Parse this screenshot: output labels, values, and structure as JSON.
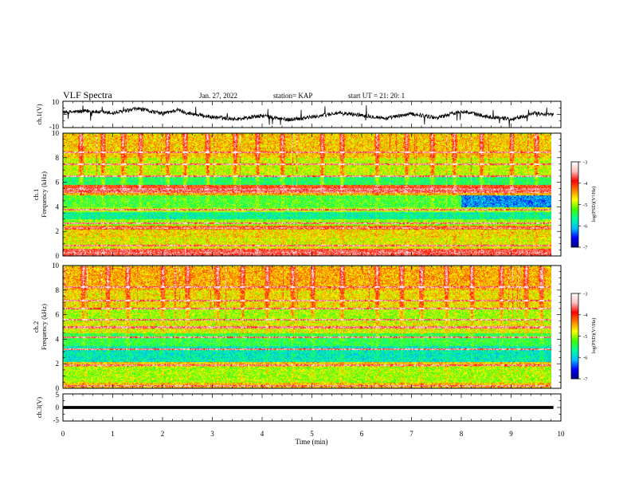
{
  "header": {
    "title": "VLF Spectra",
    "date": "Jan. 27, 2022",
    "station": "station= KAP",
    "start": "start  UT =   21: 20: 1"
  },
  "chart_data": [
    {
      "type": "line",
      "name": "ch1-waveform",
      "ylabel": "ch.1(V)",
      "xlim": [
        0,
        10
      ],
      "ylim": [
        -10,
        10
      ],
      "ytick_labels": [
        "10",
        "-10"
      ],
      "data_end_min": 9.85,
      "trace": {
        "x_min": [
          0,
          0.5,
          1.0,
          1.3,
          1.5,
          2.0,
          2.3,
          2.5,
          3.0,
          3.5,
          4.0,
          4.5,
          5.0,
          5.5,
          6.0,
          6.5,
          7.0,
          7.5,
          8.0,
          8.5,
          9.0,
          9.3,
          9.5,
          9.85
        ],
        "v": [
          1.5,
          2.5,
          1.0,
          2.8,
          4.5,
          0.5,
          3.5,
          1.0,
          -2.0,
          -3.5,
          -1.0,
          -4.0,
          -2.0,
          1.0,
          -0.5,
          -3.0,
          0.5,
          -2.5,
          2.5,
          -1.5,
          -3.5,
          -1.0,
          1.0,
          -0.5
        ]
      }
    },
    {
      "type": "heatmap",
      "name": "ch1-spectrogram",
      "xlabel": "",
      "ylabel_line1": "ch.1",
      "ylabel_line2": "Frequency  (kHz)",
      "xlim": [
        0,
        10
      ],
      "ylim": [
        0,
        10
      ],
      "ytick_labels": [
        "0",
        "2",
        "4",
        "6",
        "8",
        "10"
      ],
      "data_end_min": 9.85,
      "colorbar": {
        "label": "log(PSD)(V²/Hz)",
        "range": [
          -7,
          -3
        ],
        "tick_labels": [
          "-3",
          "-4",
          "-5",
          "-6",
          "-7"
        ],
        "colormap": [
          "#000080",
          "#0000ff",
          "#00c0ff",
          "#00ffa0",
          "#40ff00",
          "#ffff00",
          "#ff8000",
          "#ff0000",
          "#ffc0c0",
          "#ffffff"
        ]
      },
      "bands": [
        {
          "f": [
            0.0,
            0.6
          ],
          "level": -3.8
        },
        {
          "f": [
            0.6,
            1.5
          ],
          "level": -4.8
        },
        {
          "f": [
            1.5,
            2.2
          ],
          "level": -4.7
        },
        {
          "f": [
            2.2,
            2.5
          ],
          "level": -4.3
        },
        {
          "f": [
            2.5,
            3.0
          ],
          "level": -5.1
        },
        {
          "f": [
            3.0,
            3.6
          ],
          "level": -5.7
        },
        {
          "f": [
            3.6,
            4.0
          ],
          "level": -5.0
        },
        {
          "f": [
            4.0,
            5.0
          ],
          "level": -5.3
        },
        {
          "f": [
            5.0,
            5.3
          ],
          "level": -4.5
        },
        {
          "f": [
            5.3,
            5.8
          ],
          "level": -4.0
        },
        {
          "f": [
            5.8,
            6.5
          ],
          "level": -5.5
        },
        {
          "f": [
            6.5,
            8.0
          ],
          "level": -4.9
        },
        {
          "f": [
            8.0,
            10.0
          ],
          "level": -4.6
        }
      ],
      "late_segment": {
        "from_min": 8.0,
        "f": [
          4.0,
          5.0
        ],
        "level": -6.2
      },
      "lines_khz": [
        0.3,
        0.9,
        2.3,
        2.7,
        3.8,
        5.2,
        5.45,
        6.5,
        7.5,
        8.5
      ],
      "bursts_min": [
        0.35,
        0.8,
        1.2,
        1.55,
        2.1,
        2.45,
        2.9,
        3.45,
        3.9,
        4.4,
        5.2,
        5.6,
        6.3,
        6.9,
        7.4,
        7.85,
        8.4,
        9.0,
        9.5
      ]
    },
    {
      "type": "heatmap",
      "name": "ch2-spectrogram",
      "xlabel": "",
      "ylabel_line1": "ch.2",
      "ylabel_line2": "Frequency  (kHz)",
      "xlim": [
        0,
        10
      ],
      "ylim": [
        0,
        10
      ],
      "ytick_labels": [
        "0",
        "2",
        "4",
        "6",
        "8",
        "10"
      ],
      "data_end_min": 9.85,
      "colorbar": {
        "label": "log(PSD)(V²/Hz)",
        "range": [
          -7,
          -3
        ],
        "tick_labels": [
          "-3",
          "-4",
          "-5",
          "-6",
          "-7"
        ],
        "colormap": [
          "#000080",
          "#0000ff",
          "#00c0ff",
          "#00ffa0",
          "#40ff00",
          "#ffff00",
          "#ff8000",
          "#ff0000",
          "#ffc0c0",
          "#ffffff"
        ]
      },
      "bands": [
        {
          "f": [
            0.0,
            0.5
          ],
          "level": -4.6
        },
        {
          "f": [
            0.5,
            1.8
          ],
          "level": -5.0
        },
        {
          "f": [
            1.8,
            2.2
          ],
          "level": -4.6
        },
        {
          "f": [
            2.2,
            3.5
          ],
          "level": -5.8
        },
        {
          "f": [
            3.5,
            4.5
          ],
          "level": -5.4
        },
        {
          "f": [
            4.5,
            5.5
          ],
          "level": -4.8
        },
        {
          "f": [
            5.5,
            6.5
          ],
          "level": -5.0
        },
        {
          "f": [
            6.5,
            8.0
          ],
          "level": -4.7
        },
        {
          "f": [
            8.0,
            10.0
          ],
          "level": -4.5
        }
      ],
      "late_segment": null,
      "lines_khz": [
        0.2,
        1.9,
        3.2,
        4.2,
        5.0,
        5.6,
        6.5,
        7.2,
        8.3
      ],
      "bursts_min": [
        0.4,
        0.9,
        1.3,
        2.0,
        2.5,
        3.1,
        3.6,
        4.1,
        4.6,
        5.0,
        5.6,
        6.3,
        6.8,
        7.2,
        7.7,
        8.2,
        8.8,
        9.3,
        9.6
      ]
    },
    {
      "type": "line",
      "name": "ch3-waveform",
      "ylabel": "ch.3(V)",
      "xlim": [
        0,
        10
      ],
      "ylim": [
        -5,
        5
      ],
      "ytick_labels": [
        "5",
        "0",
        "-5"
      ],
      "data_end_min": 9.85,
      "band": {
        "center": 0,
        "half_width": 0.55
      },
      "xlabel": "Time  (min)",
      "xtick_labels": [
        "0",
        "1",
        "2",
        "3",
        "4",
        "5",
        "6",
        "7",
        "8",
        "9",
        "10"
      ]
    }
  ]
}
